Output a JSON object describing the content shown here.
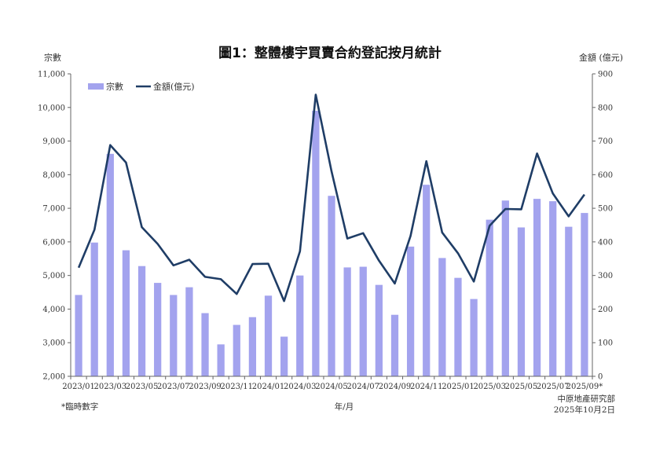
{
  "chart_data": {
    "type": "bar",
    "title": "圖1：整體樓宇買賣合約登記按月統計",
    "xlabel": "年/月",
    "ylabel_left": "宗數",
    "ylabel_right": "金額 (億元)",
    "ylim_left": [
      2000,
      11000
    ],
    "ylim_right": [
      0,
      900
    ],
    "yticks_left": [
      "2,000",
      "3,000",
      "4,000",
      "5,000",
      "6,000",
      "7,000",
      "8,000",
      "9,000",
      "10,000",
      "11,000"
    ],
    "yticks_right": [
      "0",
      "100",
      "200",
      "300",
      "400",
      "500",
      "600",
      "700",
      "800",
      "900"
    ],
    "xtick_labels": [
      "2023/01",
      "2023/03",
      "2023/05",
      "2023/07",
      "2023/09",
      "2023/11",
      "2024/01",
      "2024/03",
      "2024/05",
      "2024/07",
      "2024/09",
      "2024/11",
      "2025/01",
      "2025/03",
      "2025/05",
      "2025/07",
      "2025/09*"
    ],
    "legend": {
      "placement": "top-left",
      "bar_label": "宗數",
      "line_label": "金額(億元)"
    },
    "grid": false,
    "categories": [
      "2023/01",
      "2023/02",
      "2023/03",
      "2023/04",
      "2023/05",
      "2023/06",
      "2023/07",
      "2023/08",
      "2023/09",
      "2023/10",
      "2023/11",
      "2023/12",
      "2024/01",
      "2024/02",
      "2024/03",
      "2024/04",
      "2024/05",
      "2024/06",
      "2024/07",
      "2024/08",
      "2024/09",
      "2024/10",
      "2024/11",
      "2024/12",
      "2025/01",
      "2025/02",
      "2025/03",
      "2025/04",
      "2025/05",
      "2025/06",
      "2025/07",
      "2025/08",
      "2025/09"
    ],
    "series": [
      {
        "name": "宗數",
        "kind": "bar",
        "axis": "left",
        "values": [
          4420,
          5980,
          8620,
          5750,
          5280,
          4780,
          4420,
          4650,
          3880,
          2950,
          3530,
          3760,
          4400,
          3180,
          5000,
          9900,
          7370,
          5240,
          5260,
          4720,
          3830,
          5860,
          7700,
          5520,
          4930,
          4300,
          6660,
          7230,
          6430,
          7280,
          7210,
          6450,
          6860
        ]
      },
      {
        "name": "金額(億元)",
        "kind": "line",
        "axis": "right",
        "values": [
          323,
          436,
          688,
          636,
          444,
          394,
          330,
          347,
          296,
          289,
          245,
          334,
          335,
          224,
          372,
          838,
          610,
          410,
          426,
          344,
          276,
          418,
          640,
          428,
          366,
          282,
          448,
          498,
          497,
          663,
          544,
          476,
          541
        ]
      }
    ],
    "colors": {
      "bar": "#a3a3ee",
      "line": "#1f3d66"
    },
    "footnote": "*臨時數字",
    "source": "中原地產研究部",
    "date": "2025年10月2日"
  }
}
